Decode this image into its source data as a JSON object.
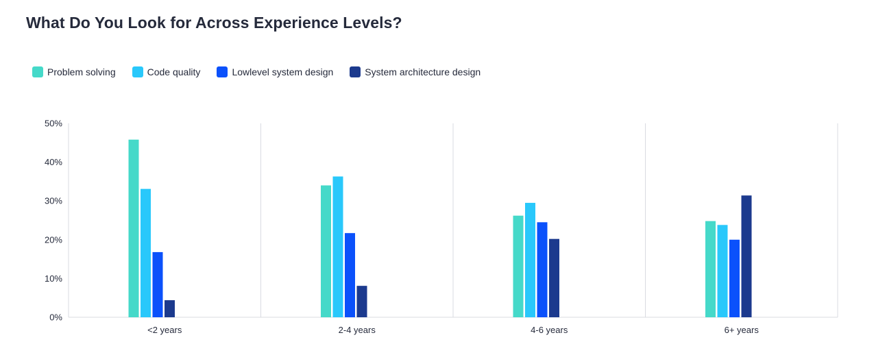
{
  "page": {
    "title": "What Do You Look for Across Experience Levels?"
  },
  "chart_data": {
    "type": "bar",
    "title": "What Do You Look for Across Experience Levels?",
    "xlabel": "",
    "ylabel": "",
    "categories": [
      "<2 years",
      "2-4 years",
      "4-6 years",
      "6+ years"
    ],
    "series": [
      {
        "name": "Problem solving",
        "color": "#45d9c9",
        "values": [
          45.8,
          34.0,
          26.2,
          24.8
        ]
      },
      {
        "name": "Code quality",
        "color": "#29c8fb",
        "values": [
          33.1,
          36.3,
          29.5,
          23.8
        ]
      },
      {
        "name": "Lowlevel system design",
        "color": "#0b51fb",
        "values": [
          16.8,
          21.7,
          24.5,
          20.0
        ]
      },
      {
        "name": "System architecture design",
        "color": "#1c3a8e",
        "values": [
          4.4,
          8.1,
          20.2,
          31.4
        ]
      }
    ],
    "ylim": [
      0,
      50
    ],
    "yticks": [
      0,
      10,
      20,
      30,
      40,
      50
    ],
    "ytick_labels": [
      "0%",
      "10%",
      "20%",
      "30%",
      "40%",
      "50%"
    ],
    "grid": "vertical category separators",
    "legend_position": "top-left"
  }
}
